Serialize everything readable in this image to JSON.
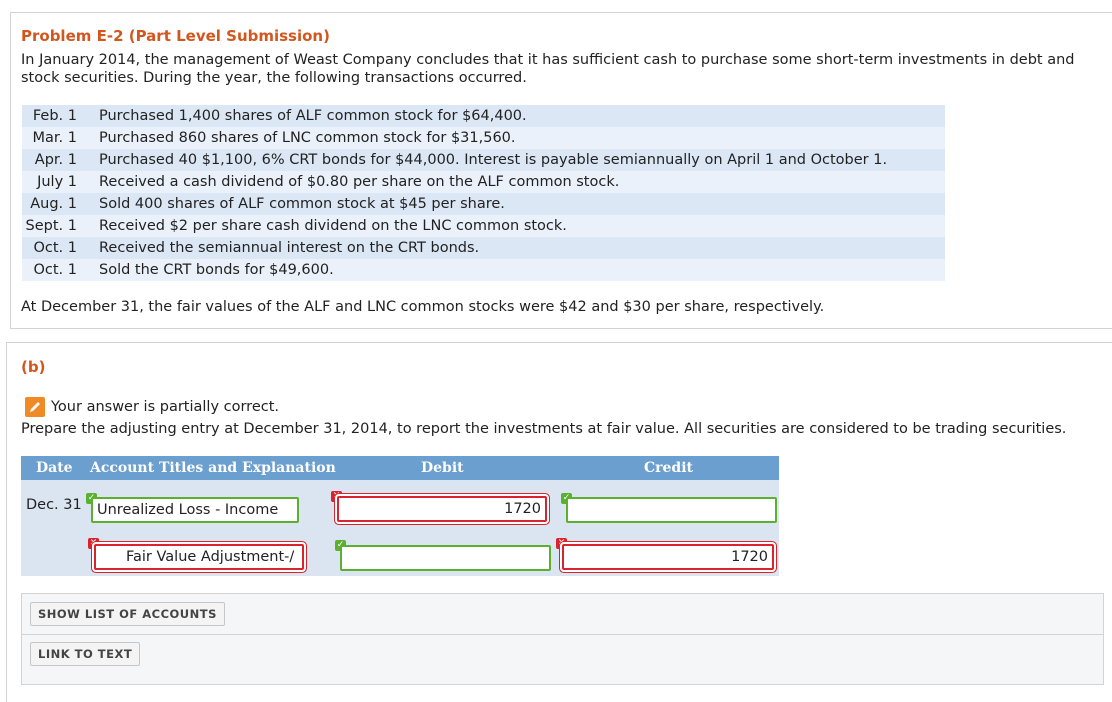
{
  "problem": {
    "title": "Problem E-2 (Part Level Submission)",
    "intro": "In January 2014, the management of Weast Company concludes that it has sufficient cash to purchase some short-term investments in debt and stock securities. During the year, the following transactions occurred.",
    "transactions": [
      {
        "date": "Feb. 1",
        "text": "Purchased 1,400 shares of ALF common stock for $64,400."
      },
      {
        "date": "Mar. 1",
        "text": "Purchased 860 shares of LNC common stock for $31,560."
      },
      {
        "date": "Apr. 1",
        "text": "Purchased 40  $1,100, 6% CRT bonds for $44,000. Interest is payable semiannually on April 1 and October 1."
      },
      {
        "date": "July 1",
        "text": "Received a cash dividend of $0.80 per share on the ALF common stock."
      },
      {
        "date": "Aug. 1",
        "text": "Sold 400 shares of ALF common stock at $45 per share."
      },
      {
        "date": "Sept. 1",
        "text": "Received $2 per share cash dividend on the LNC common stock."
      },
      {
        "date": "Oct. 1",
        "text": "Received the semiannual interest on the CRT bonds."
      },
      {
        "date": "Oct. 1",
        "text": "Sold the CRT bonds for $49,600."
      }
    ],
    "fair_value_note": "At December 31, the fair values of the ALF and LNC common stocks were $42 and $30 per share, respectively."
  },
  "part_b": {
    "label": "(b)",
    "status_text": "Your answer is partially correct.",
    "instructions": "Prepare the adjusting entry at December 31, 2014, to report the investments at fair value. All securities are considered to be trading securities.",
    "table": {
      "headers": {
        "date": "Date",
        "account": "Account Titles and Explanation",
        "debit": "Debit",
        "credit": "Credit"
      },
      "date": "Dec. 31",
      "rows": [
        {
          "account": "Unrealized Loss - Income",
          "debit": "1720",
          "credit": ""
        },
        {
          "account": "Fair Value Adjustment-/",
          "debit": "",
          "credit": "1720"
        }
      ]
    },
    "buttons": {
      "show_accounts": "SHOW LIST OF ACCOUNTS",
      "link_to_text": "LINK TO TEXT"
    }
  },
  "colors": {
    "accent": "#d2571f",
    "header": "#6a9fd0",
    "correct": "#5bb030",
    "incorrect": "#d9232d"
  }
}
